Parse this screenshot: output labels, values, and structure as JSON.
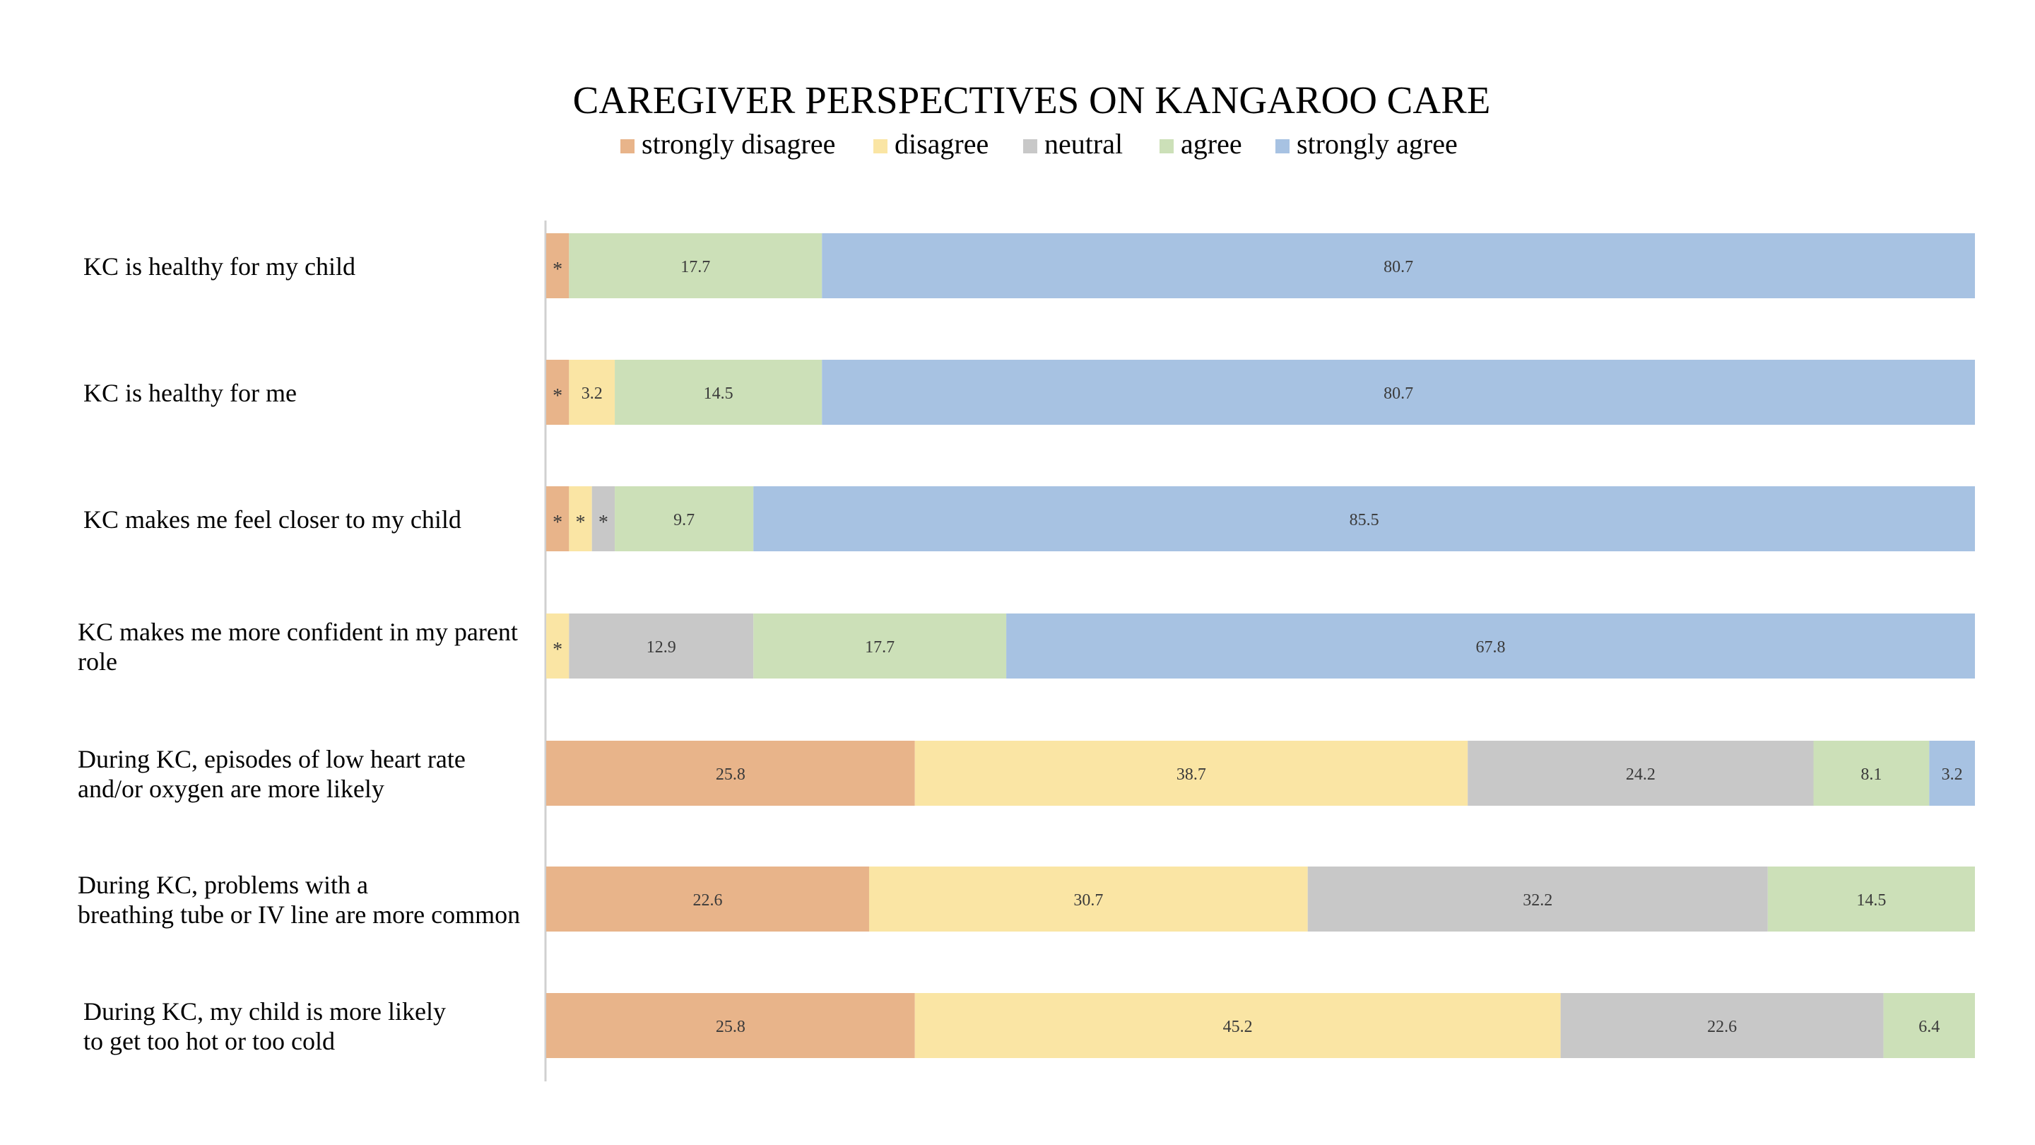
{
  "chart_data": {
    "type": "bar",
    "orientation": "horizontal",
    "stacked": true,
    "title": "CAREGIVER PERSPECTIVES ON KANGAROO CARE",
    "legend_position": "top",
    "grid": false,
    "xlim": [
      0,
      100
    ],
    "categories": [
      "KC is healthy for my child",
      "KC is healthy for me",
      "KC makes me feel closer to my child",
      "KC makes me more confident in my parent role",
      "During KC, episodes of low heart rate and/or oxygen are more likely",
      "During KC, problems with a breathing tube or IV line are more common",
      "During KC, my child is more likely to get too hot or too cold"
    ],
    "category_lines": [
      [
        "KC is healthy for my child"
      ],
      [
        "KC is healthy for me"
      ],
      [
        "KC makes me feel closer to my child"
      ],
      [
        "KC makes me more confident in my parent",
        "role"
      ],
      [
        "During KC, episodes of low heart rate",
        "and/or oxygen are more likely"
      ],
      [
        "During KC, problems with a",
        "breathing tube or IV line are more common"
      ],
      [
        "During KC, my child is more likely",
        "to get too hot or too cold"
      ]
    ],
    "series": [
      {
        "name": "strongly disagree",
        "color": "#E8B48A",
        "values": [
          1.6,
          1.6,
          1.6,
          0,
          25.8,
          22.6,
          25.8
        ],
        "labels": [
          "*",
          "*",
          "*",
          "",
          "25.8",
          "22.6",
          "25.8"
        ]
      },
      {
        "name": "disagree",
        "color": "#FAE5A4",
        "values": [
          0,
          3.2,
          1.6,
          1.6,
          38.7,
          30.7,
          45.2
        ],
        "labels": [
          "",
          "3.2",
          "*",
          "*",
          "38.7",
          "30.7",
          "45.2"
        ]
      },
      {
        "name": "neutral",
        "color": "#C8C8C8",
        "values": [
          0,
          0,
          1.6,
          12.9,
          24.2,
          32.2,
          22.6
        ],
        "labels": [
          "",
          "",
          "*",
          "12.9",
          "24.2",
          "32.2",
          "22.6"
        ]
      },
      {
        "name": "agree",
        "color": "#CCE0B8",
        "values": [
          17.7,
          14.5,
          9.7,
          17.7,
          8.1,
          14.5,
          6.4
        ],
        "labels": [
          "17.7",
          "14.5",
          "9.7",
          "17.7",
          "8.1",
          "14.5",
          "6.4"
        ]
      },
      {
        "name": "strongly agree",
        "color": "#A7C2E2",
        "values": [
          80.7,
          80.7,
          85.5,
          67.8,
          3.2,
          0,
          0
        ],
        "labels": [
          "80.7",
          "80.7",
          "85.5",
          "67.8",
          "3.2",
          "",
          ""
        ]
      }
    ]
  }
}
